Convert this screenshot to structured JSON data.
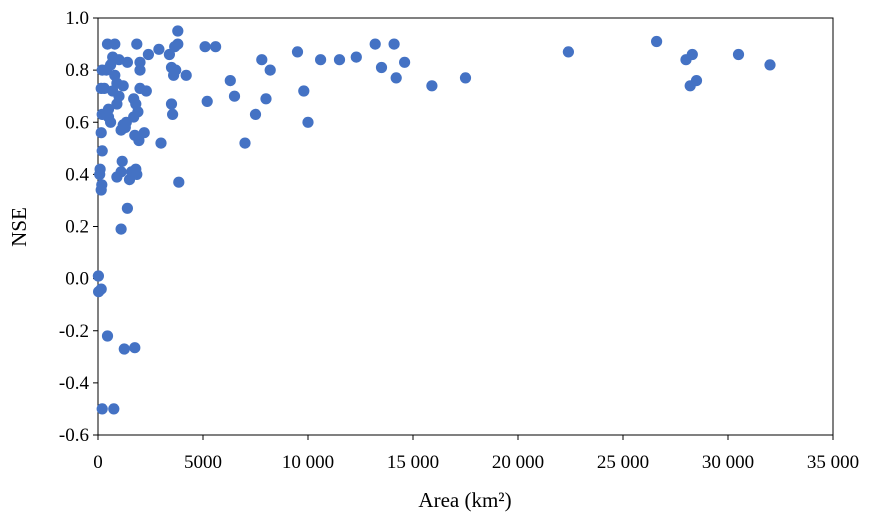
{
  "chart_data": {
    "type": "scatter",
    "title": "",
    "xlabel": "Area (km²)",
    "ylabel": "NSE",
    "xlim": [
      0,
      35000
    ],
    "ylim": [
      -0.6,
      1.0
    ],
    "xticks": [
      0,
      5000,
      10000,
      15000,
      20000,
      25000,
      30000,
      35000
    ],
    "xtick_labels": [
      "0",
      "5000",
      "10 000",
      "15 000",
      "20 000",
      "25 000",
      "30 000",
      "35 000"
    ],
    "yticks": [
      -0.6,
      -0.4,
      -0.2,
      0.0,
      0.2,
      0.4,
      0.6,
      0.8,
      1.0
    ],
    "ytick_labels": [
      "-0.6",
      "-0.4",
      "-0.2",
      "0.0",
      "0.2",
      "0.4",
      "0.6",
      "0.8",
      "1.0"
    ],
    "grid": false,
    "legend": "none",
    "marker_color": "#4472c4",
    "series": [
      {
        "points": [
          [
            20,
            0.01
          ],
          [
            30,
            -0.05
          ],
          [
            150,
            -0.04
          ],
          [
            200,
            -0.5
          ],
          [
            750,
            -0.5
          ],
          [
            450,
            -0.22
          ],
          [
            1250,
            -0.27
          ],
          [
            1750,
            -0.265
          ],
          [
            1100,
            0.19
          ],
          [
            80,
            0.4
          ],
          [
            100,
            0.42
          ],
          [
            150,
            0.34
          ],
          [
            180,
            0.36
          ],
          [
            200,
            0.49
          ],
          [
            150,
            0.56
          ],
          [
            200,
            0.63
          ],
          [
            150,
            0.73
          ],
          [
            200,
            0.8
          ],
          [
            450,
            0.9
          ],
          [
            500,
            0.65
          ],
          [
            600,
            0.6
          ],
          [
            800,
            0.9
          ],
          [
            900,
            0.67
          ],
          [
            1000,
            0.7
          ],
          [
            1100,
            0.57
          ],
          [
            1150,
            0.45
          ],
          [
            1200,
            0.59
          ],
          [
            1300,
            0.58
          ],
          [
            1350,
            0.6
          ],
          [
            1400,
            0.27
          ],
          [
            1500,
            0.38
          ],
          [
            1600,
            0.41
          ],
          [
            1700,
            0.62
          ],
          [
            1800,
            0.67
          ],
          [
            1800,
            0.42
          ],
          [
            1850,
            0.4
          ],
          [
            1900,
            0.64
          ],
          [
            1950,
            0.53
          ],
          [
            2000,
            0.73
          ],
          [
            2200,
            0.56
          ],
          [
            2300,
            0.72
          ],
          [
            2400,
            0.86
          ],
          [
            1850,
            0.9
          ],
          [
            2000,
            0.8
          ],
          [
            1400,
            0.83
          ],
          [
            1200,
            0.74
          ],
          [
            300,
            0.73
          ],
          [
            400,
            0.8
          ],
          [
            500,
            0.62
          ],
          [
            700,
            0.85
          ],
          [
            800,
            0.78
          ],
          [
            900,
            0.75
          ],
          [
            1000,
            0.84
          ],
          [
            1100,
            0.41
          ],
          [
            900,
            0.39
          ],
          [
            700,
            0.72
          ],
          [
            600,
            0.82
          ],
          [
            1700,
            0.69
          ],
          [
            1750,
            0.55
          ],
          [
            2000,
            0.83
          ],
          [
            3000,
            0.52
          ],
          [
            2900,
            0.88
          ],
          [
            3400,
            0.86
          ],
          [
            3500,
            0.81
          ],
          [
            3500,
            0.67
          ],
          [
            3550,
            0.63
          ],
          [
            3600,
            0.78
          ],
          [
            3700,
            0.8
          ],
          [
            3650,
            0.89
          ],
          [
            3800,
            0.95
          ],
          [
            3800,
            0.9
          ],
          [
            3850,
            0.37
          ],
          [
            4200,
            0.78
          ],
          [
            5100,
            0.89
          ],
          [
            5600,
            0.89
          ],
          [
            5200,
            0.68
          ],
          [
            6300,
            0.76
          ],
          [
            6500,
            0.7
          ],
          [
            7000,
            0.52
          ],
          [
            7500,
            0.63
          ],
          [
            7800,
            0.84
          ],
          [
            8000,
            0.69
          ],
          [
            8200,
            0.8
          ],
          [
            9500,
            0.87
          ],
          [
            9800,
            0.72
          ],
          [
            10000,
            0.6
          ],
          [
            10600,
            0.84
          ],
          [
            11500,
            0.84
          ],
          [
            12300,
            0.85
          ],
          [
            13200,
            0.9
          ],
          [
            13500,
            0.81
          ],
          [
            14100,
            0.9
          ],
          [
            14200,
            0.77
          ],
          [
            14600,
            0.83
          ],
          [
            15900,
            0.74
          ],
          [
            17500,
            0.77
          ],
          [
            22400,
            0.87
          ],
          [
            26600,
            0.91
          ],
          [
            28000,
            0.84
          ],
          [
            28200,
            0.74
          ],
          [
            28300,
            0.86
          ],
          [
            28500,
            0.76
          ],
          [
            30500,
            0.86
          ],
          [
            32000,
            0.82
          ]
        ]
      }
    ]
  }
}
